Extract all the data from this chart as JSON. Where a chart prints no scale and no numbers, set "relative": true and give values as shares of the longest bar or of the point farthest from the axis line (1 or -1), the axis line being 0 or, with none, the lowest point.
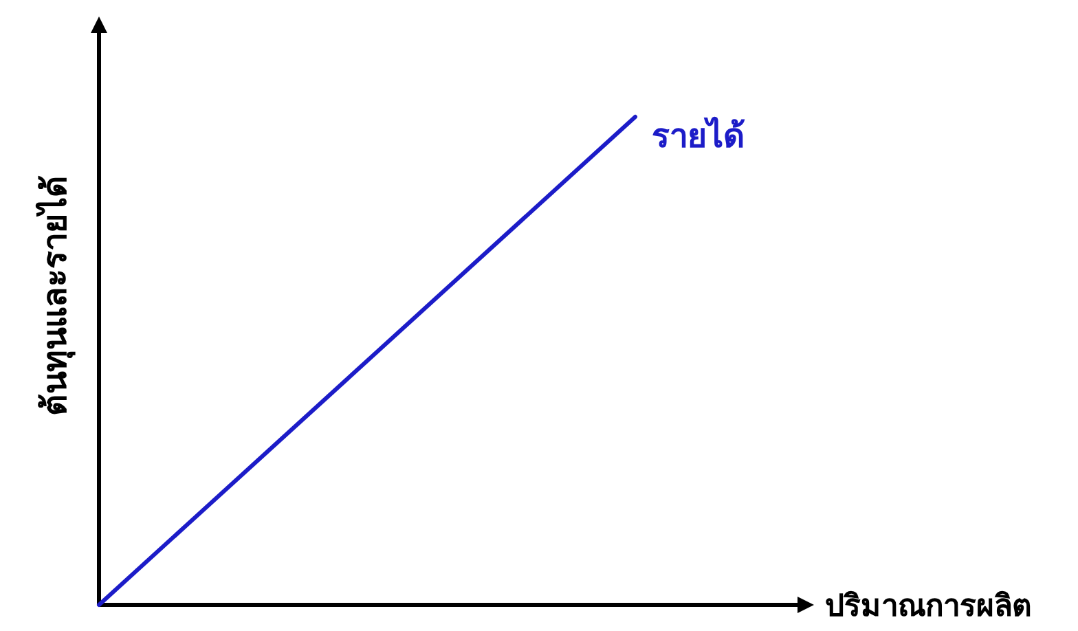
{
  "chart_data": {
    "type": "line",
    "relative": true,
    "xlabel": "ปริมาณการผลิต",
    "ylabel": "ต้นทุนและรายได้",
    "categories": [
      null,
      null
    ],
    "series": [
      {
        "name": "รายได้",
        "color": "#1c1cc8",
        "values": [
          0,
          1
        ]
      }
    ]
  }
}
